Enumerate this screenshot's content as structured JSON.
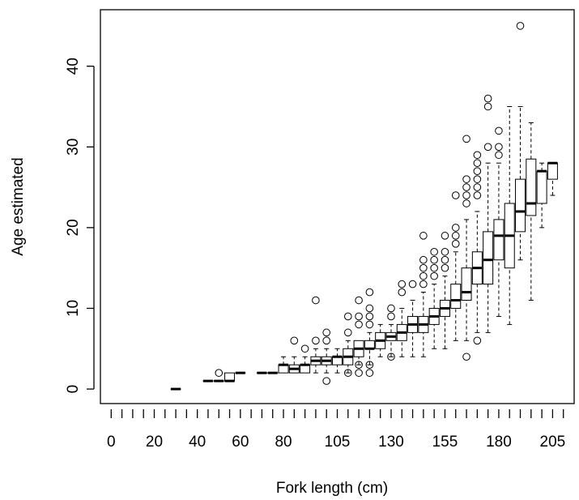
{
  "chart_data": {
    "type": "boxplot",
    "title": "",
    "xlabel": "Fork length (cm)",
    "ylabel": "Age estimated",
    "xlim": [
      -5,
      215
    ],
    "ylim": [
      -1.8,
      47
    ],
    "grid": false,
    "legend": "none",
    "x_tick_positions": [
      0,
      5,
      10,
      15,
      20,
      25,
      30,
      35,
      40,
      45,
      50,
      55,
      60,
      65,
      70,
      75,
      80,
      85,
      90,
      95,
      100,
      105,
      110,
      115,
      120,
      125,
      130,
      135,
      140,
      145,
      150,
      155,
      160,
      165,
      170,
      175,
      180,
      185,
      190,
      195,
      200,
      205,
      210
    ],
    "x_tick_labels": [
      {
        "value": 0,
        "label": "0"
      },
      {
        "value": 20,
        "label": "20"
      },
      {
        "value": 40,
        "label": "40"
      },
      {
        "value": 60,
        "label": "60"
      },
      {
        "value": 80,
        "label": "80"
      },
      {
        "value": 105,
        "label": "105"
      },
      {
        "value": 130,
        "label": "130"
      },
      {
        "value": 155,
        "label": "155"
      },
      {
        "value": 180,
        "label": "180"
      },
      {
        "value": 205,
        "label": "205"
      }
    ],
    "y_ticks": [
      0,
      10,
      20,
      30,
      40
    ],
    "boxes": [
      {
        "x": 30,
        "q1": 0,
        "median": 0,
        "q3": 0,
        "lower": 0,
        "upper": 0,
        "outliers": []
      },
      {
        "x": 45,
        "q1": 1,
        "median": 1,
        "q3": 1,
        "lower": 1,
        "upper": 1,
        "outliers": []
      },
      {
        "x": 50,
        "q1": 1,
        "median": 1,
        "q3": 1,
        "lower": 1,
        "upper": 1,
        "outliers": [
          2
        ]
      },
      {
        "x": 55,
        "q1": 1,
        "median": 1,
        "q3": 2,
        "lower": 1,
        "upper": 2,
        "outliers": []
      },
      {
        "x": 60,
        "q1": 2,
        "median": 2,
        "q3": 2,
        "lower": 2,
        "upper": 2,
        "outliers": []
      },
      {
        "x": 70,
        "q1": 2,
        "median": 2,
        "q3": 2,
        "lower": 2,
        "upper": 2,
        "outliers": []
      },
      {
        "x": 75,
        "q1": 2,
        "median": 2,
        "q3": 2,
        "lower": 2,
        "upper": 2,
        "outliers": []
      },
      {
        "x": 80,
        "q1": 2,
        "median": 3,
        "q3": 3,
        "lower": 2,
        "upper": 4,
        "outliers": []
      },
      {
        "x": 85,
        "q1": 2,
        "median": 2.5,
        "q3": 3,
        "lower": 2,
        "upper": 4,
        "outliers": [
          6
        ]
      },
      {
        "x": 90,
        "q1": 2,
        "median": 3,
        "q3": 3,
        "lower": 2,
        "upper": 4,
        "outliers": [
          5
        ]
      },
      {
        "x": 95,
        "q1": 3,
        "median": 3.5,
        "q3": 4,
        "lower": 2,
        "upper": 5,
        "outliers": [
          6,
          11
        ]
      },
      {
        "x": 100,
        "q1": 3,
        "median": 3.5,
        "q3": 4,
        "lower": 2,
        "upper": 5,
        "outliers": [
          1,
          6,
          7
        ]
      },
      {
        "x": 105,
        "q1": 3,
        "median": 4,
        "q3": 4,
        "lower": 2,
        "upper": 5,
        "outliers": []
      },
      {
        "x": 110,
        "q1": 3,
        "median": 4,
        "q3": 5,
        "lower": 2,
        "upper": 6,
        "outliers": [
          2,
          7,
          9
        ]
      },
      {
        "x": 115,
        "q1": 4,
        "median": 5,
        "q3": 6,
        "lower": 3,
        "upper": 6,
        "outliers": [
          2,
          3,
          8,
          9,
          11
        ]
      },
      {
        "x": 120,
        "q1": 5,
        "median": 5,
        "q3": 6,
        "lower": 3,
        "upper": 7,
        "outliers": [
          2,
          3,
          8,
          9,
          10,
          12
        ]
      },
      {
        "x": 125,
        "q1": 5,
        "median": 6,
        "q3": 7,
        "lower": 4,
        "upper": 8,
        "outliers": []
      },
      {
        "x": 130,
        "q1": 6,
        "median": 6.5,
        "q3": 7,
        "lower": 4,
        "upper": 8,
        "outliers": [
          4,
          9,
          10
        ]
      },
      {
        "x": 135,
        "q1": 6,
        "median": 7,
        "q3": 8,
        "lower": 4,
        "upper": 10,
        "outliers": [
          12,
          13
        ]
      },
      {
        "x": 140,
        "q1": 7,
        "median": 8,
        "q3": 9,
        "lower": 4,
        "upper": 11,
        "outliers": [
          13
        ]
      },
      {
        "x": 145,
        "q1": 7,
        "median": 8,
        "q3": 9,
        "lower": 4,
        "upper": 12,
        "outliers": [
          13,
          14,
          15,
          16,
          19
        ]
      },
      {
        "x": 150,
        "q1": 8,
        "median": 9,
        "q3": 10,
        "lower": 5,
        "upper": 13,
        "outliers": [
          14,
          15,
          16,
          17
        ]
      },
      {
        "x": 155,
        "q1": 9,
        "median": 10,
        "q3": 11,
        "lower": 5,
        "upper": 14,
        "outliers": [
          15,
          16,
          17,
          19
        ]
      },
      {
        "x": 160,
        "q1": 10,
        "median": 11,
        "q3": 13,
        "lower": 6,
        "upper": 17,
        "outliers": [
          18,
          19,
          20,
          24
        ]
      },
      {
        "x": 165,
        "q1": 11,
        "median": 12,
        "q3": 15,
        "lower": 6,
        "upper": 21,
        "outliers": [
          4,
          23,
          24,
          25,
          26,
          31
        ]
      },
      {
        "x": 170,
        "q1": 13,
        "median": 15,
        "q3": 17,
        "lower": 7,
        "upper": 22,
        "outliers": [
          6,
          24,
          25,
          26,
          27,
          28,
          29
        ]
      },
      {
        "x": 175,
        "q1": 13,
        "median": 16,
        "q3": 19.5,
        "lower": 7,
        "upper": 28,
        "outliers": [
          30,
          35,
          36
        ]
      },
      {
        "x": 180,
        "q1": 16,
        "median": 19,
        "q3": 21,
        "lower": 9,
        "upper": 28,
        "outliers": [
          29,
          30,
          32
        ]
      },
      {
        "x": 185,
        "q1": 15,
        "median": 19,
        "q3": 23,
        "lower": 8,
        "upper": 35,
        "outliers": []
      },
      {
        "x": 190,
        "q1": 19.5,
        "median": 22,
        "q3": 26,
        "lower": 16,
        "upper": 35,
        "outliers": [
          45
        ]
      },
      {
        "x": 195,
        "q1": 21.5,
        "median": 23,
        "q3": 28.5,
        "lower": 11,
        "upper": 33,
        "outliers": []
      },
      {
        "x": 200,
        "q1": 23,
        "median": 27,
        "q3": 27,
        "lower": 20,
        "upper": 28,
        "outliers": []
      },
      {
        "x": 205,
        "q1": 26,
        "median": 28,
        "q3": 28,
        "lower": 24,
        "upper": 28,
        "outliers": []
      }
    ]
  }
}
